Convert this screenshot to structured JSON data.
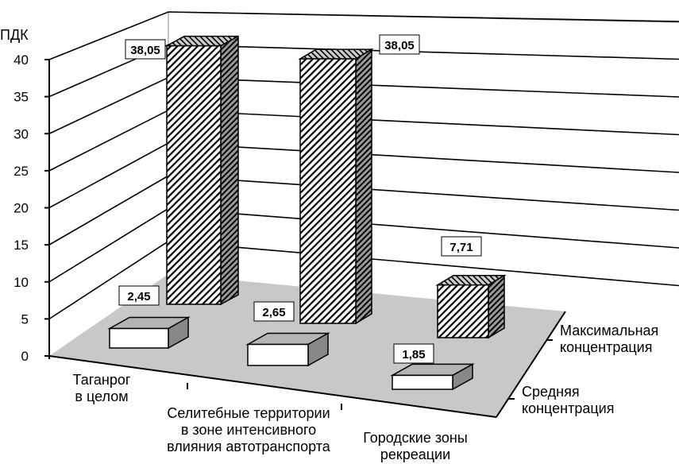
{
  "chart_data": {
    "type": "bar",
    "subtype": "3d-clustered-rows",
    "ylabel": "ПДК",
    "ylim": [
      0,
      40
    ],
    "yticks": [
      0,
      5,
      10,
      15,
      20,
      25,
      30,
      35,
      40
    ],
    "grid": true,
    "categories": [
      "Таганрог\nв целом",
      "Селитебные территории\nв зоне интенсивного\nвлияния автотранспорта",
      "Городские зоны\nрекреации"
    ],
    "series": [
      {
        "name": "Максимальная\nконцентрация",
        "values": [
          38.05,
          38.05,
          7.71
        ],
        "labels": [
          "38,05",
          "38,05",
          "7,71"
        ],
        "pattern": "diagonal-hatch"
      },
      {
        "name": "Средняя\nконцентрация",
        "values": [
          2.45,
          2.65,
          1.85
        ],
        "labels": [
          "2,45",
          "2,65",
          "1,85"
        ],
        "pattern": "white"
      }
    ],
    "legend": "right",
    "colors": {
      "floor": "#c8c8c8",
      "side": "#888888",
      "top": "#b4b4b4"
    }
  }
}
